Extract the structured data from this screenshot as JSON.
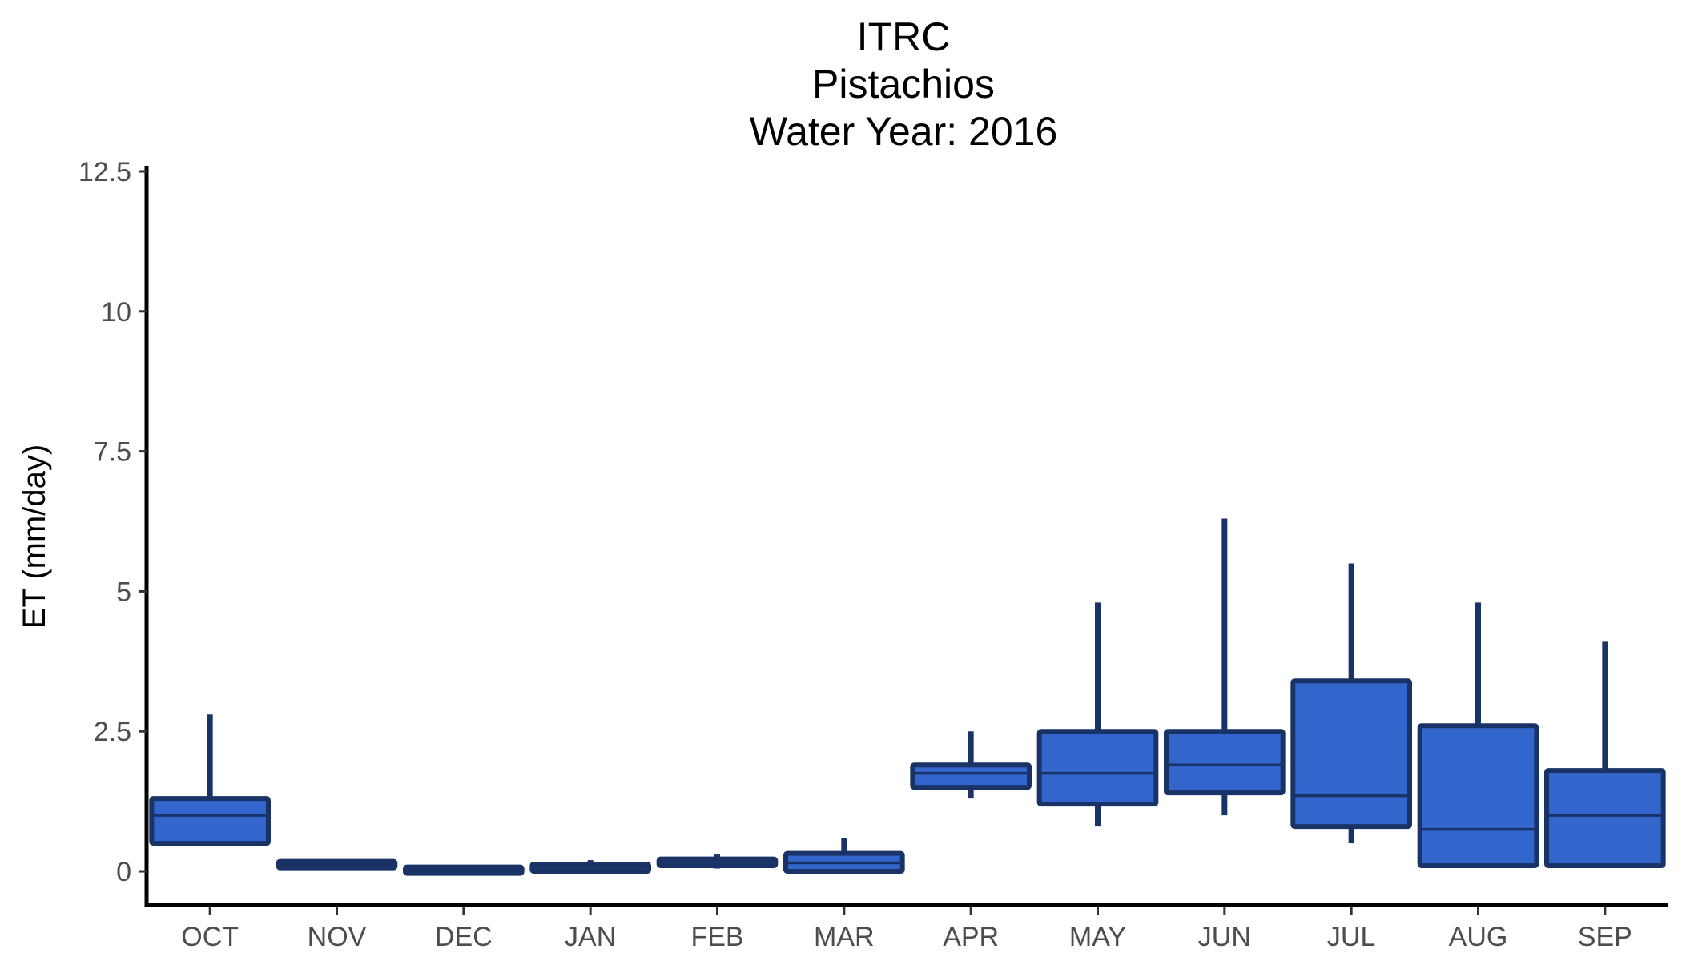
{
  "chart_data": {
    "type": "box",
    "title_lines": [
      "ITRC",
      "Pistachios",
      "Water Year: 2016"
    ],
    "xlabel": "",
    "ylabel": "ET (mm/day)",
    "ylim": [
      -0.6,
      12.6
    ],
    "y_ticks": [
      0,
      2.5,
      5,
      7.5,
      10,
      12.5
    ],
    "y_tick_labels": [
      "0",
      "2.5",
      "5",
      "7.5",
      "10",
      "12.5"
    ],
    "grid": false,
    "legend": "none",
    "colors": {
      "box_fill": "#3366cc",
      "box_stroke": "#1a3366",
      "axis": "#000000"
    },
    "categories": [
      "OCT",
      "NOV",
      "DEC",
      "JAN",
      "FEB",
      "MAR",
      "APR",
      "MAY",
      "JUN",
      "JUL",
      "AUG",
      "SEP"
    ],
    "boxes": [
      {
        "min": 0.5,
        "q1": 0.5,
        "median": 1.0,
        "q3": 1.3,
        "max": 2.8
      },
      {
        "min": 0.1,
        "q1": 0.1,
        "median": 0.12,
        "q3": 0.14,
        "max": 0.2
      },
      {
        "min": 0.0,
        "q1": 0.0,
        "median": 0.02,
        "q3": 0.04,
        "max": 0.1
      },
      {
        "min": 0.0,
        "q1": 0.0,
        "median": 0.07,
        "q3": 0.13,
        "max": 0.2
      },
      {
        "min": 0.05,
        "q1": 0.1,
        "median": 0.17,
        "q3": 0.22,
        "max": 0.3
      },
      {
        "min": 0.0,
        "q1": 0.0,
        "median": 0.15,
        "q3": 0.32,
        "max": 0.6
      },
      {
        "min": 1.3,
        "q1": 1.5,
        "median": 1.75,
        "q3": 1.9,
        "max": 2.5
      },
      {
        "min": 0.8,
        "q1": 1.2,
        "median": 1.75,
        "q3": 2.5,
        "max": 4.8
      },
      {
        "min": 1.0,
        "q1": 1.4,
        "median": 1.9,
        "q3": 2.5,
        "max": 6.3
      },
      {
        "min": 0.5,
        "q1": 0.8,
        "median": 1.35,
        "q3": 3.4,
        "max": 5.5
      },
      {
        "min": 0.1,
        "q1": 0.1,
        "median": 0.75,
        "q3": 2.6,
        "max": 4.8
      },
      {
        "min": 0.1,
        "q1": 0.1,
        "median": 1.0,
        "q3": 1.8,
        "max": 4.1
      }
    ]
  }
}
